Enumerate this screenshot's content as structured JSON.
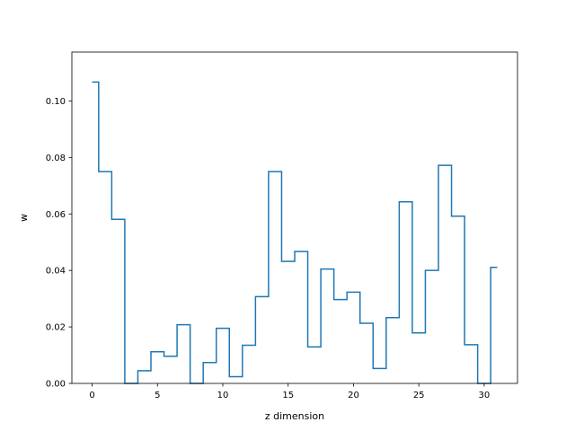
{
  "chart_data": {
    "type": "line",
    "drawstyle": "steps-mid",
    "xlabel": "z dimension",
    "ylabel": "w",
    "xlim": [
      -1.55,
      32.55
    ],
    "ylim": [
      0,
      0.1173
    ],
    "xticks": [
      0,
      5,
      10,
      15,
      20,
      25,
      30
    ],
    "yticks": [
      0.0,
      0.02,
      0.04,
      0.06,
      0.08,
      0.1
    ],
    "ytick_labels": [
      "0.00",
      "0.02",
      "0.04",
      "0.06",
      "0.08",
      "0.10"
    ],
    "color": "#1f77b4",
    "grid": false,
    "x": [
      0,
      1,
      2,
      3,
      4,
      5,
      6,
      7,
      8,
      9,
      10,
      11,
      12,
      13,
      14,
      15,
      16,
      17,
      18,
      19,
      20,
      21,
      22,
      23,
      24,
      25,
      26,
      27,
      28,
      29,
      30,
      31
    ],
    "values": [
      0.1067,
      0.075,
      0.0581,
      0.0,
      0.0045,
      0.0112,
      0.0096,
      0.0208,
      0.0,
      0.0074,
      0.0195,
      0.0024,
      0.0135,
      0.0307,
      0.075,
      0.0432,
      0.0467,
      0.0129,
      0.0405,
      0.0297,
      0.0323,
      0.0213,
      0.0053,
      0.0233,
      0.0643,
      0.0179,
      0.04,
      0.0772,
      0.0592,
      0.0137,
      0.0,
      0.0411
    ]
  }
}
